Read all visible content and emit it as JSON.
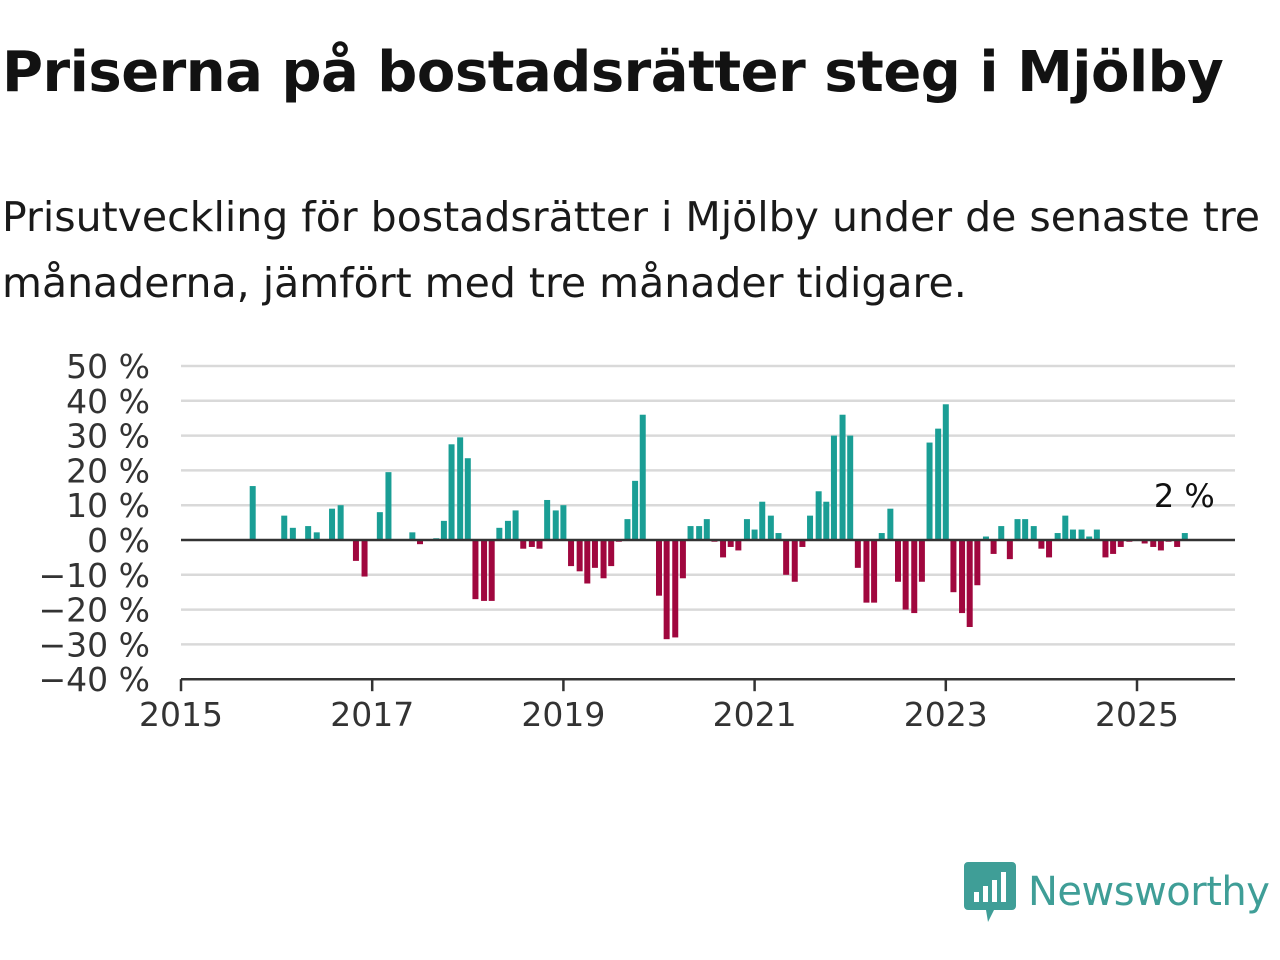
{
  "title": "Priserna på bostadsrätter steg i Mjölby",
  "subtitle": "Prisutveckling för bostadsrätter i Mjölby under de senaste tre månaderna, jämfört med tre månader tidigare.",
  "brand": {
    "name": "Newsworthy",
    "color": "#3f9e97"
  },
  "colors": {
    "positive": "#1a9e95",
    "negative": "#a0073e",
    "grid": "#d9d9d9",
    "axis": "#333333"
  },
  "chart_data": {
    "type": "bar",
    "title": "Priserna på bostadsrätter steg i Mjölby",
    "xlabel": "",
    "ylabel": "",
    "x_range": [
      2015.0,
      2026.0
    ],
    "ylim": [
      -40,
      50
    ],
    "y_ticks": [
      50,
      40,
      30,
      20,
      10,
      0,
      -10,
      -20,
      -30,
      -40
    ],
    "y_tick_labels": [
      "50 %",
      "40 %",
      "30 %",
      "20 %",
      "10 %",
      "0 %",
      "−10 %",
      "−20 %",
      "−30 %",
      "−40 %"
    ],
    "x_ticks": [
      2015,
      2017,
      2019,
      2021,
      2023,
      2025
    ],
    "x_tick_labels": [
      "2015",
      "2017",
      "2019",
      "2021",
      "2023",
      "2025"
    ],
    "grid": true,
    "last_value_label": "2 %",
    "x": [
      2015.75,
      2016.08,
      2016.17,
      2016.33,
      2016.42,
      2016.58,
      2016.67,
      2016.83,
      2016.92,
      2017.08,
      2017.17,
      2017.42,
      2017.5,
      2017.67,
      2017.75,
      2017.83,
      2017.92,
      2018.0,
      2018.08,
      2018.17,
      2018.25,
      2018.33,
      2018.42,
      2018.5,
      2018.58,
      2018.67,
      2018.75,
      2018.83,
      2018.92,
      2019.0,
      2019.08,
      2019.17,
      2019.25,
      2019.33,
      2019.42,
      2019.5,
      2019.58,
      2019.67,
      2019.75,
      2019.83,
      2020.0,
      2020.08,
      2020.17,
      2020.25,
      2020.33,
      2020.42,
      2020.5,
      2020.58,
      2020.67,
      2020.75,
      2020.83,
      2020.92,
      2021.0,
      2021.08,
      2021.17,
      2021.25,
      2021.33,
      2021.42,
      2021.5,
      2021.58,
      2021.67,
      2021.75,
      2021.83,
      2021.92,
      2022.0,
      2022.08,
      2022.17,
      2022.25,
      2022.33,
      2022.42,
      2022.5,
      2022.58,
      2022.67,
      2022.75,
      2022.83,
      2022.92,
      2023.0,
      2023.08,
      2023.17,
      2023.25,
      2023.33,
      2023.42,
      2023.5,
      2023.58,
      2023.67,
      2023.75,
      2023.83,
      2023.92,
      2024.0,
      2024.08,
      2024.17,
      2024.25,
      2024.33,
      2024.42,
      2024.5,
      2024.58,
      2024.67,
      2024.75,
      2024.83,
      2024.92,
      2025.08,
      2025.17,
      2025.25,
      2025.33,
      2025.42,
      2025.5
    ],
    "values": [
      15.5,
      7,
      3.5,
      4,
      2.2,
      9,
      10,
      -6,
      -10.5,
      8,
      19.5,
      2.2,
      -1.2,
      0.5,
      5.5,
      27.5,
      29.5,
      23.5,
      -17,
      -17.5,
      -17.5,
      3.5,
      5.5,
      8.5,
      -2.5,
      -2,
      -2.5,
      11.5,
      8.5,
      10,
      -7.5,
      -9,
      -12.5,
      -8,
      -11,
      -7.5,
      -0.5,
      6,
      17,
      36,
      -16,
      -28.5,
      -28,
      -11,
      4,
      4,
      6,
      -0.5,
      -5,
      -2,
      -3,
      6,
      3,
      11,
      7,
      2,
      -10,
      -12,
      -2,
      7,
      14,
      11,
      30,
      36,
      30,
      -8,
      -18,
      -18,
      2,
      9,
      -12,
      -20,
      -21,
      -12,
      28,
      32,
      39,
      -15,
      -21,
      -25,
      -13,
      1,
      -4,
      4,
      -5.5,
      6,
      6,
      4,
      -2.5,
      -5,
      2,
      7,
      3,
      3,
      1,
      3,
      -5,
      -4,
      -2,
      -0.5,
      -1,
      -2,
      -3,
      -0.5,
      -2,
      2
    ]
  }
}
